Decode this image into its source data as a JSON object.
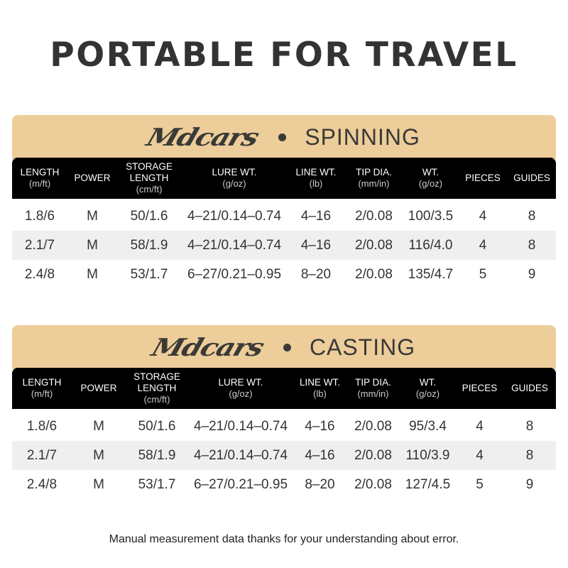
{
  "title": "PORTABLE FOR TRAVEL",
  "brand": "Mdcars",
  "columns": [
    {
      "label": "LENGTH",
      "unit": "(m/ft)"
    },
    {
      "label": "POWER",
      "unit": ""
    },
    {
      "label": "STORAGE LENGTH",
      "unit": "(cm/ft)"
    },
    {
      "label": "LURE WT.",
      "unit": "(g/oz)"
    },
    {
      "label": "LINE WT.",
      "unit": "(lb)"
    },
    {
      "label": "TIP DIA.",
      "unit": "(mm/in)"
    },
    {
      "label": "WT.",
      "unit": "(g/oz)"
    },
    {
      "label": "PIECES",
      "unit": ""
    },
    {
      "label": "GUIDES",
      "unit": ""
    }
  ],
  "tables": [
    {
      "category": "SPINNING",
      "rows": [
        [
          "1.8/6",
          "M",
          "50/1.6",
          "4–21/0.14–0.74",
          "4–16",
          "2/0.08",
          "100/3.5",
          "4",
          "8"
        ],
        [
          "2.1/7",
          "M",
          "58/1.9",
          "4–21/0.14–0.74",
          "4–16",
          "2/0.08",
          "116/4.0",
          "4",
          "8"
        ],
        [
          "2.4/8",
          "M",
          "53/1.7",
          "6–27/0.21–0.95",
          "8–20",
          "2/0.08",
          "135/4.7",
          "5",
          "9"
        ]
      ]
    },
    {
      "category": "CASTING",
      "rows": [
        [
          "1.8/6",
          "M",
          "50/1.6",
          "4–21/0.14–0.74",
          "4–16",
          "2/0.08",
          "95/3.4",
          "4",
          "8"
        ],
        [
          "2.1/7",
          "M",
          "58/1.9",
          "4–21/0.14–0.74",
          "4–16",
          "2/0.08",
          "110/3.9",
          "4",
          "8"
        ],
        [
          "2.4/8",
          "M",
          "53/1.7",
          "6–27/0.21–0.95",
          "8–20",
          "2/0.08",
          "127/4.5",
          "5",
          "9"
        ]
      ]
    }
  ],
  "footer": "Manual measurement data thanks for your understanding about error.",
  "colors": {
    "band": "#edcd9a",
    "header": "#000000",
    "alt_row": "#efefef"
  }
}
